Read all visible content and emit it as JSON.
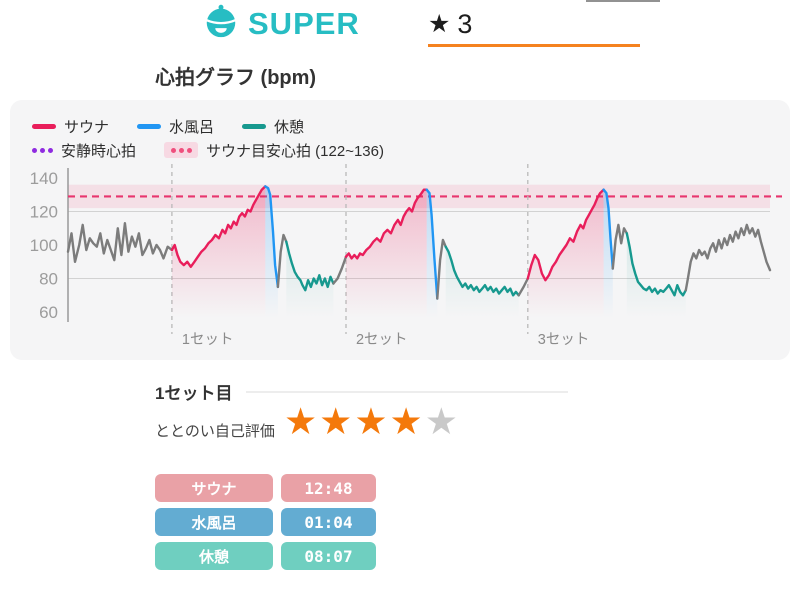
{
  "header": {
    "logo_text": "SUPER",
    "brand_color": "#27bdc3",
    "tab": {
      "star_icon": "★",
      "label": "3",
      "underline_color": "#f5821f"
    }
  },
  "section_title": "心拍グラフ (bpm)",
  "chart_data": {
    "type": "line",
    "title": "心拍グラフ (bpm)",
    "ylabel": "bpm",
    "ylim": [
      60,
      145
    ],
    "yticks": [
      140,
      120,
      100,
      80,
      60
    ],
    "gridlines": [
      120,
      80
    ],
    "grid_color": "#d2d2d2",
    "axis_color": "#9a9a9a",
    "tick_color": "#9c9c9c",
    "legend": [
      {
        "label": "サウナ",
        "color": "#e91e5b",
        "style": "solid"
      },
      {
        "label": "水風呂",
        "color": "#2196f3",
        "style": "solid"
      },
      {
        "label": "休憩",
        "color": "#17998f",
        "style": "solid"
      },
      {
        "label": "安静時心拍",
        "color": "#8f2be0",
        "style": "dotted"
      },
      {
        "label": "サウナ目安心拍 (122~136)",
        "color": "#ef4f7d",
        "style": "dotted",
        "band_bg": "#f7d9e3"
      }
    ],
    "target_band": {
      "min": 122,
      "max": 136,
      "line": 129,
      "fill": "#e91e5b",
      "fill_opacity": 0.1,
      "line_color": "#e8356e"
    },
    "sets": [
      {
        "label": "1セット",
        "t": 14.8
      },
      {
        "label": "2セット",
        "t": 39.6
      },
      {
        "label": "3セット",
        "t": 65.5
      }
    ],
    "set_line_color": "#b9b9b9",
    "set_label_color": "#8a8a8a",
    "phase_colors": {
      "gray": "#7c7c7c",
      "sauna": "#e91e5b",
      "water": "#2196f3",
      "rest": "#17998f"
    },
    "fill_opacity": {
      "sauna": 0.3,
      "water": 0.3,
      "rest": 0.22
    },
    "segments": [
      {
        "phase": "gray",
        "points": [
          [
            0,
            96
          ],
          [
            0.5,
            107
          ],
          [
            1,
            90
          ],
          [
            1.6,
            100
          ],
          [
            2.1,
            112
          ],
          [
            2.6,
            97
          ],
          [
            3.1,
            104
          ],
          [
            3.6,
            101
          ],
          [
            4.1,
            99
          ],
          [
            4.6,
            107
          ],
          [
            5.1,
            95
          ],
          [
            5.6,
            103
          ],
          [
            6.1,
            97
          ],
          [
            6.6,
            91
          ],
          [
            7.1,
            110
          ],
          [
            7.6,
            94
          ],
          [
            8.1,
            113
          ],
          [
            8.6,
            96
          ],
          [
            9.1,
            105
          ],
          [
            9.6,
            99
          ],
          [
            10.1,
            107
          ],
          [
            10.6,
            94
          ],
          [
            11.1,
            98
          ],
          [
            11.6,
            103
          ],
          [
            12.1,
            95
          ],
          [
            12.6,
            100
          ],
          [
            13.1,
            97
          ],
          [
            13.6,
            92
          ],
          [
            14.2,
            99
          ],
          [
            14.8,
            97
          ]
        ]
      },
      {
        "phase": "sauna",
        "points": [
          [
            14.8,
            97
          ],
          [
            15.2,
            100
          ],
          [
            15.6,
            94
          ],
          [
            16,
            90
          ],
          [
            16.5,
            88
          ],
          [
            17,
            90
          ],
          [
            17.5,
            87
          ],
          [
            18,
            90
          ],
          [
            18.5,
            93
          ],
          [
            19,
            96
          ],
          [
            19.5,
            98
          ],
          [
            20,
            101
          ],
          [
            20.5,
            103
          ],
          [
            21,
            106
          ],
          [
            21.5,
            104
          ],
          [
            22,
            109
          ],
          [
            22.4,
            107
          ],
          [
            22.8,
            112
          ],
          [
            23.2,
            110
          ],
          [
            23.6,
            114
          ],
          [
            24,
            112
          ],
          [
            24.4,
            117
          ],
          [
            24.8,
            119
          ],
          [
            25.2,
            117
          ],
          [
            25.6,
            121
          ],
          [
            26,
            120
          ],
          [
            26.4,
            124
          ],
          [
            26.8,
            127
          ],
          [
            27.2,
            130
          ],
          [
            27.6,
            133
          ],
          [
            28.1,
            135
          ]
        ]
      },
      {
        "phase": "water",
        "points": [
          [
            28.1,
            135
          ],
          [
            28.5,
            134
          ],
          [
            28.8,
            130
          ],
          [
            29.2,
            108
          ],
          [
            29.5,
            88
          ],
          [
            29.9,
            75
          ]
        ]
      },
      {
        "phase": "gray",
        "points": [
          [
            29.9,
            75
          ],
          [
            30.3,
            96
          ],
          [
            30.7,
            106
          ],
          [
            31.1,
            102
          ]
        ]
      },
      {
        "phase": "rest",
        "points": [
          [
            31.1,
            102
          ],
          [
            31.5,
            95
          ],
          [
            31.9,
            89
          ],
          [
            32.3,
            84
          ],
          [
            32.7,
            81
          ],
          [
            33.1,
            79
          ],
          [
            33.4,
            76
          ],
          [
            33.8,
            73
          ],
          [
            34.2,
            79
          ],
          [
            34.6,
            75
          ],
          [
            35,
            80
          ],
          [
            35.4,
            77
          ],
          [
            35.8,
            82
          ],
          [
            36.2,
            76
          ],
          [
            36.6,
            80
          ],
          [
            37,
            75
          ],
          [
            37.4,
            81
          ],
          [
            37.8,
            77
          ]
        ]
      },
      {
        "phase": "gray",
        "points": [
          [
            37.8,
            77
          ],
          [
            38.4,
            80
          ],
          [
            39,
            86
          ],
          [
            39.6,
            93
          ]
        ]
      },
      {
        "phase": "sauna",
        "points": [
          [
            39.6,
            93
          ],
          [
            40,
            95
          ],
          [
            40.4,
            92
          ],
          [
            40.8,
            94
          ],
          [
            41.2,
            92
          ],
          [
            41.6,
            95
          ],
          [
            42,
            94
          ],
          [
            42.5,
            97
          ],
          [
            43,
            99
          ],
          [
            43.5,
            102
          ],
          [
            44,
            104
          ],
          [
            44.5,
            102
          ],
          [
            45,
            107
          ],
          [
            45.5,
            109
          ],
          [
            46,
            107
          ],
          [
            46.5,
            112
          ],
          [
            47,
            115
          ],
          [
            47.4,
            112
          ],
          [
            47.8,
            117
          ],
          [
            48.2,
            120
          ],
          [
            48.6,
            122
          ],
          [
            49,
            120
          ],
          [
            49.4,
            125
          ],
          [
            49.8,
            128
          ],
          [
            50.2,
            130
          ],
          [
            50.7,
            133
          ],
          [
            51.1,
            133
          ]
        ]
      },
      {
        "phase": "water",
        "points": [
          [
            51.1,
            133
          ],
          [
            51.5,
            131
          ],
          [
            51.8,
            118
          ],
          [
            52.2,
            92
          ],
          [
            52.6,
            68
          ]
        ]
      },
      {
        "phase": "gray",
        "points": [
          [
            52.6,
            68
          ],
          [
            53,
            91
          ],
          [
            53.4,
            103
          ],
          [
            53.8,
            99
          ]
        ]
      },
      {
        "phase": "rest",
        "points": [
          [
            53.8,
            99
          ],
          [
            54.2,
            96
          ],
          [
            54.6,
            91
          ],
          [
            55,
            85
          ],
          [
            55.4,
            81
          ],
          [
            55.8,
            78
          ],
          [
            56.2,
            75
          ],
          [
            56.6,
            77
          ],
          [
            57,
            74
          ],
          [
            57.4,
            76
          ],
          [
            57.8,
            73
          ],
          [
            58.2,
            75
          ],
          [
            58.6,
            72
          ],
          [
            59,
            74
          ],
          [
            59.4,
            76
          ],
          [
            59.8,
            73
          ],
          [
            60.2,
            75
          ],
          [
            60.6,
            72
          ],
          [
            61,
            74
          ],
          [
            61.4,
            71
          ],
          [
            61.8,
            73
          ],
          [
            62.2,
            75
          ],
          [
            62.6,
            72
          ],
          [
            63,
            74
          ],
          [
            63.4,
            70
          ],
          [
            63.8,
            72
          ],
          [
            64.2,
            70
          ]
        ]
      },
      {
        "phase": "gray",
        "points": [
          [
            64.2,
            70
          ],
          [
            64.9,
            75
          ],
          [
            65.5,
            80
          ]
        ]
      },
      {
        "phase": "sauna",
        "points": [
          [
            65.5,
            80
          ],
          [
            66,
            88
          ],
          [
            66.5,
            94
          ],
          [
            67,
            91
          ],
          [
            67.5,
            83
          ],
          [
            68,
            79
          ],
          [
            68.5,
            82
          ],
          [
            69,
            87
          ],
          [
            69.5,
            90
          ],
          [
            70,
            94
          ],
          [
            70.5,
            97
          ],
          [
            71,
            100
          ],
          [
            71.5,
            104
          ],
          [
            72,
            102
          ],
          [
            72.5,
            108
          ],
          [
            73,
            112
          ],
          [
            73.4,
            110
          ],
          [
            73.8,
            115
          ],
          [
            74.2,
            118
          ],
          [
            74.6,
            121
          ],
          [
            75,
            124
          ],
          [
            75.4,
            128
          ],
          [
            75.8,
            131
          ],
          [
            76.3,
            133
          ]
        ]
      },
      {
        "phase": "water",
        "points": [
          [
            76.3,
            133
          ],
          [
            76.7,
            131
          ],
          [
            77,
            122
          ],
          [
            77.3,
            103
          ],
          [
            77.6,
            86
          ]
        ]
      },
      {
        "phase": "gray",
        "points": [
          [
            77.6,
            86
          ],
          [
            78,
            103
          ],
          [
            78.4,
            112
          ],
          [
            78.8,
            101
          ],
          [
            79.2,
            110
          ],
          [
            79.6,
            107
          ]
        ]
      },
      {
        "phase": "rest",
        "points": [
          [
            79.6,
            107
          ],
          [
            80,
            99
          ],
          [
            80.4,
            89
          ],
          [
            80.8,
            83
          ],
          [
            81.2,
            78
          ],
          [
            81.6,
            76
          ],
          [
            82,
            74
          ],
          [
            82.4,
            73
          ],
          [
            82.8,
            75
          ],
          [
            83.2,
            72
          ],
          [
            83.6,
            74
          ],
          [
            84,
            71
          ],
          [
            84.4,
            73
          ],
          [
            84.8,
            72
          ],
          [
            85.2,
            74
          ],
          [
            85.6,
            76
          ],
          [
            86,
            73
          ],
          [
            86.4,
            70
          ],
          [
            86.8,
            76
          ],
          [
            87.2,
            72
          ],
          [
            87.6,
            70
          ],
          [
            88,
            73
          ]
        ]
      },
      {
        "phase": "gray",
        "points": [
          [
            88,
            73
          ],
          [
            88.3,
            80
          ],
          [
            88.7,
            90
          ],
          [
            89.1,
            95
          ],
          [
            89.5,
            92
          ],
          [
            89.9,
            97
          ],
          [
            90.3,
            94
          ],
          [
            90.7,
            96
          ],
          [
            91.1,
            92
          ],
          [
            91.5,
            98
          ],
          [
            91.9,
            101
          ],
          [
            92.3,
            96
          ],
          [
            92.7,
            103
          ],
          [
            93.1,
            98
          ],
          [
            93.5,
            104
          ],
          [
            93.9,
            100
          ],
          [
            94.3,
            106
          ],
          [
            94.7,
            102
          ],
          [
            95.1,
            108
          ],
          [
            95.5,
            104
          ],
          [
            95.9,
            110
          ],
          [
            96.3,
            106
          ],
          [
            96.7,
            112
          ],
          [
            97.1,
            107
          ],
          [
            97.5,
            110
          ],
          [
            97.9,
            105
          ],
          [
            98.3,
            109
          ],
          [
            98.7,
            102
          ],
          [
            99.1,
            96
          ],
          [
            99.5,
            90
          ],
          [
            100,
            85
          ]
        ]
      }
    ]
  },
  "detail": {
    "heading": "1セット目",
    "rating_label": "ととのい自己評価",
    "rating": {
      "filled": 4,
      "total": 5,
      "star": "★",
      "filled_color": "#f4790b",
      "empty_color": "#c9c9c9"
    },
    "rows": [
      {
        "label": "サウナ",
        "value": "12:48",
        "color": "#e9a1a6"
      },
      {
        "label": "水風呂",
        "value": "01:04",
        "color": "#63acd2"
      },
      {
        "label": "休憩",
        "value": "08:07",
        "color": "#6fcfc0"
      }
    ]
  }
}
